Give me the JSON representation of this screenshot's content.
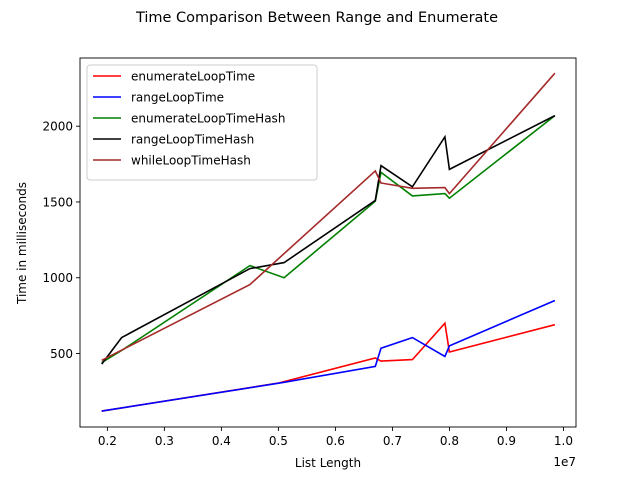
{
  "chart_data": {
    "type": "line",
    "title": "Time Comparison Between Range and Enumerate",
    "xlabel": "List Length",
    "ylabel": "Time in milliseconds",
    "x_offset_label": "1e7",
    "xlim": [
      0.152,
      1.022
    ],
    "ylim": [
      15,
      2450
    ],
    "x_ticks": [
      0.2,
      0.3,
      0.4,
      0.5,
      0.6,
      0.7,
      0.8,
      0.9,
      1.0
    ],
    "x_tick_labels": [
      "0.2",
      "0.3",
      "0.4",
      "0.5",
      "0.6",
      "0.7",
      "0.8",
      "0.9",
      "1.0"
    ],
    "y_ticks": [
      500,
      1000,
      1500,
      2000
    ],
    "y_tick_labels": [
      "500",
      "1000",
      "1500",
      "2000"
    ],
    "grid": false,
    "legend_position": "upper-left",
    "series": [
      {
        "name": "enumerateLoopTime",
        "color": "#ff0000",
        "x": [
          0.19,
          0.5,
          0.67,
          0.68,
          0.735,
          0.792,
          0.8,
          0.985
        ],
        "y": [
          120,
          305,
          470,
          450,
          460,
          700,
          510,
          690
        ]
      },
      {
        "name": "rangeLoopTime",
        "color": "#0000ff",
        "x": [
          0.19,
          0.51,
          0.67,
          0.68,
          0.735,
          0.792,
          0.8,
          0.985
        ],
        "y": [
          120,
          310,
          415,
          535,
          605,
          480,
          550,
          850
        ]
      },
      {
        "name": "enumerateLoopTimeHash",
        "color": "#008000",
        "x": [
          0.19,
          0.225,
          0.45,
          0.51,
          0.67,
          0.68,
          0.735,
          0.792,
          0.8,
          0.985
        ],
        "y": [
          440,
          520,
          1080,
          1000,
          1505,
          1695,
          1540,
          1555,
          1525,
          2070
        ]
      },
      {
        "name": "rangeLoopTimeHash",
        "color": "#000000",
        "x": [
          0.19,
          0.225,
          0.45,
          0.51,
          0.67,
          0.68,
          0.735,
          0.792,
          0.8,
          0.985
        ],
        "y": [
          430,
          605,
          1060,
          1100,
          1510,
          1740,
          1600,
          1930,
          1715,
          2070
        ]
      },
      {
        "name": "whileLoopTimeHash",
        "color": "#a52a2a",
        "x": [
          0.19,
          0.45,
          0.67,
          0.68,
          0.735,
          0.792,
          0.8,
          0.985
        ],
        "y": [
          455,
          955,
          1705,
          1625,
          1590,
          1595,
          1555,
          2350
        ]
      }
    ]
  }
}
